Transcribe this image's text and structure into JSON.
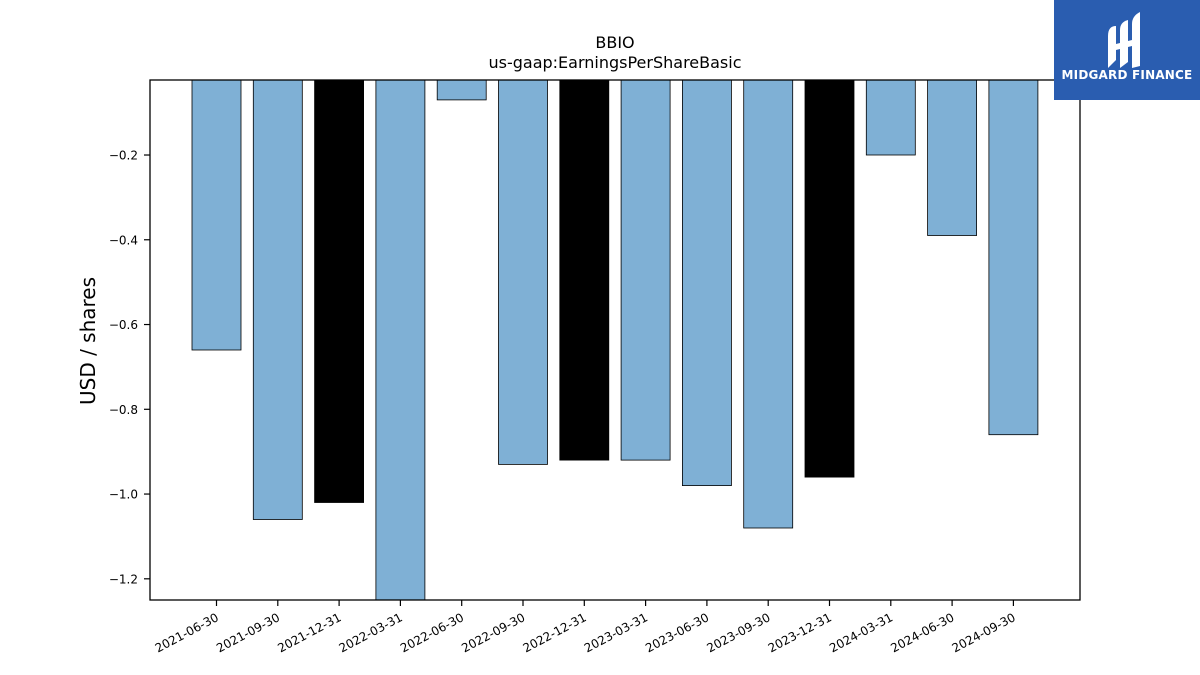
{
  "chart_data": {
    "type": "bar",
    "title": "BBIO",
    "subtitle": "us-gaap:EarningsPerShareBasic",
    "xlabel": "",
    "ylabel": "USD / shares",
    "categories": [
      "2021-06-30",
      "2021-09-30",
      "2021-12-31",
      "2022-03-31",
      "2022-06-30",
      "2022-09-30",
      "2022-12-31",
      "2023-03-31",
      "2023-06-30",
      "2023-09-30",
      "2023-12-31",
      "2024-03-31",
      "2024-06-30",
      "2024-09-30"
    ],
    "values": [
      -0.66,
      -1.06,
      -1.02,
      -1.25,
      -0.07,
      -0.93,
      -0.92,
      -0.92,
      -0.98,
      -1.08,
      -0.96,
      -0.2,
      -0.39,
      -0.86
    ],
    "bar_colors": [
      "#7fb0d5",
      "#7fb0d5",
      "#000000",
      "#7fb0d5",
      "#7fb0d5",
      "#7fb0d5",
      "#000000",
      "#7fb0d5",
      "#7fb0d5",
      "#7fb0d5",
      "#000000",
      "#7fb0d5",
      "#7fb0d5",
      "#7fb0d5"
    ],
    "ylim": [
      -1.25,
      -0.023
    ],
    "yticks": [
      -0.2,
      -0.4,
      -0.6,
      -0.8,
      -1.0,
      -1.2
    ],
    "ytick_labels": [
      "−0.2",
      "−0.4",
      "−0.6",
      "−0.8",
      "−1.0",
      "−1.2"
    ],
    "grid": false,
    "legend": "none"
  },
  "logo": {
    "text": "MIDGARD FINANCE",
    "background": "#2a5db0",
    "icon": "midgard-logo-icon"
  }
}
